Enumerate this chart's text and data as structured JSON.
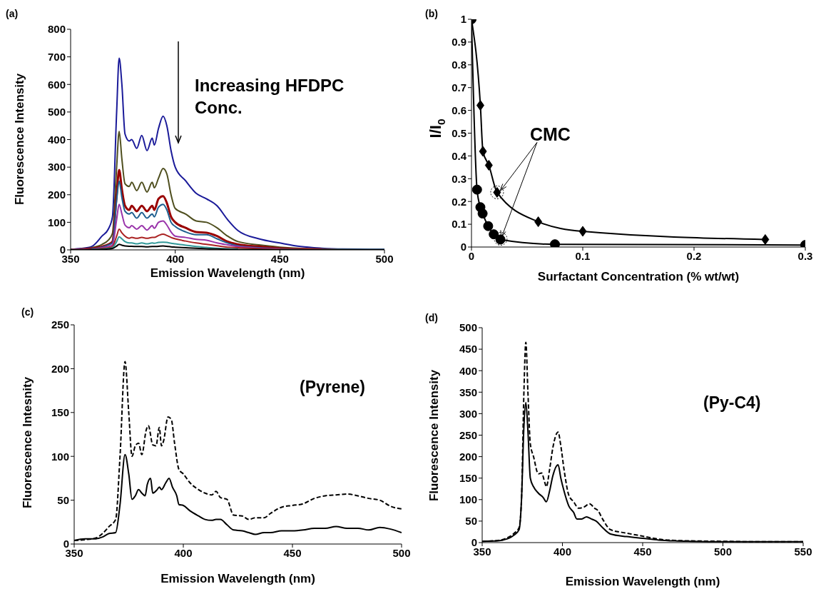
{
  "chart_data": [
    {
      "type": "line",
      "title": "(a)",
      "xlabel": "Emission Wavelength (nm)",
      "ylabel": "Fluorescence Intensity",
      "annotations": [
        "Increasing HFDPC Conc."
      ],
      "x": [
        350,
        355,
        360,
        365,
        368,
        370,
        372,
        373.2,
        374.5,
        376,
        378,
        379.2,
        381.6,
        384,
        386.5,
        389,
        390,
        392,
        394.2,
        396,
        398,
        400,
        405,
        410,
        415,
        420,
        425,
        430,
        440,
        450,
        460,
        470,
        480,
        500
      ],
      "series": [
        {
          "color": "#1a1a99",
          "values": [
            2,
            5,
            12,
            50,
            75,
            120,
            500,
            695,
            600,
            420,
            395,
            400,
            368,
            415,
            360,
            405,
            380,
            440,
            485,
            450,
            360,
            300,
            250,
            205,
            185,
            160,
            110,
            70,
            40,
            25,
            12,
            6,
            3,
            2
          ]
        },
        {
          "color": "#4f4f1f",
          "values": [
            1,
            3,
            8,
            20,
            35,
            60,
            300,
            430,
            330,
            240,
            230,
            245,
            215,
            245,
            210,
            245,
            225,
            260,
            295,
            275,
            200,
            150,
            130,
            105,
            100,
            80,
            50,
            30,
            18,
            10,
            5,
            3,
            2,
            1
          ]
        },
        {
          "color": "#990000",
          "values": [
            1,
            2,
            5,
            12,
            20,
            30,
            200,
            290,
            220,
            160,
            145,
            160,
            140,
            160,
            140,
            160,
            145,
            185,
            195,
            170,
            120,
            100,
            80,
            65,
            62,
            50,
            30,
            20,
            12,
            6,
            3,
            2,
            null,
            null
          ]
        },
        {
          "color": "#1f5f8f",
          "values": [
            1,
            2,
            4,
            10,
            18,
            25,
            180,
            250,
            190,
            140,
            130,
            135,
            115,
            135,
            115,
            130,
            120,
            155,
            165,
            145,
            100,
            85,
            65,
            55,
            55,
            40,
            25,
            15,
            8,
            4,
            2,
            1,
            1,
            1
          ]
        },
        {
          "color": "#9933aa",
          "values": [
            0,
            1,
            3,
            8,
            12,
            18,
            110,
            165,
            130,
            90,
            80,
            88,
            75,
            88,
            72,
            88,
            78,
            100,
            105,
            90,
            65,
            50,
            45,
            38,
            35,
            25,
            18,
            12,
            6,
            3,
            null,
            null,
            null,
            null
          ]
        },
        {
          "color": "#aa2222",
          "values": [
            0,
            1,
            2,
            5,
            8,
            12,
            50,
            75,
            62,
            50,
            42,
            45,
            42,
            45,
            42,
            45,
            45,
            52,
            57,
            52,
            45,
            40,
            32,
            25,
            20,
            15,
            10,
            8,
            4,
            2,
            1,
            1,
            0,
            0
          ]
        },
        {
          "color": "#339999",
          "values": [
            null,
            null,
            1,
            3,
            5,
            8,
            30,
            47,
            40,
            30,
            25,
            25,
            22,
            25,
            22,
            25,
            24,
            27,
            28,
            27,
            24,
            22,
            17,
            12,
            9,
            6,
            4,
            3,
            null,
            null,
            null,
            null,
            null,
            null
          ]
        },
        {
          "color": "#000000",
          "values": [
            0,
            0,
            1,
            2,
            3,
            5,
            14,
            20,
            17,
            14,
            13,
            13,
            12,
            12,
            11,
            12,
            12,
            13,
            14,
            13,
            11,
            10,
            8,
            6,
            4,
            3,
            2,
            1,
            1,
            0,
            0,
            0,
            0,
            0
          ]
        }
      ],
      "xlim": [
        350,
        500
      ],
      "xticks": [
        350,
        400,
        450,
        500
      ],
      "ylim": [
        0,
        800
      ],
      "yticks": [
        0,
        100,
        200,
        300,
        400,
        500,
        600,
        700,
        800
      ]
    },
    {
      "type": "line",
      "title": "(b)",
      "xlabel": "Surfactant Concentration (% wt/wt)",
      "ylabel": "I/I$_{0}$",
      "annotations": [
        {
          "text": "CMC",
          "x": 0.023,
          "y": 0.24
        }
      ],
      "series": [
        {
          "color": "#000000",
          "marker": "circle",
          "x": [
            0,
            0.005,
            0.008,
            0.01,
            0.015,
            0.02,
            0.026,
            0.075,
            0.3
          ],
          "values": [
            1,
            0.252,
            0.175,
            0.147,
            0.092,
            0.056,
            0.033,
            0.012,
            0.009
          ]
        },
        {
          "color": "#000000",
          "marker": "diamond",
          "x": [
            0,
            0.008,
            0.0103,
            0.0156,
            0.023,
            0.06,
            0.1,
            0.264
          ],
          "values": [
            1,
            0.622,
            0.42,
            0.359,
            0.24,
            0.111,
            0.069,
            0.033
          ]
        }
      ],
      "xlim": [
        0,
        0.3
      ],
      "xticks": [
        0,
        0.1,
        0.2,
        0.3
      ],
      "ylim": [
        0,
        1
      ],
      "yticks": [
        0,
        0.1,
        0.2,
        0.3,
        0.4,
        0.5,
        0.6,
        0.7,
        0.8,
        0.9,
        1
      ]
    },
    {
      "type": "line",
      "title": "(c)",
      "xlabel": "Emission Wavelength (nm)",
      "ylabel": "Fluorescence Intesnity",
      "annotations": [
        "(Pyrene)"
      ],
      "series": [
        {
          "color": "#000000",
          "line_style": "dashed",
          "x": [
            350,
            355,
            360,
            363,
            366,
            369,
            371,
            373.3,
            375,
            376.5,
            378,
            379.5,
            381,
            383,
            384,
            386,
            387.5,
            389,
            390,
            391,
            393,
            394.5,
            396,
            398,
            400,
            403,
            407,
            410,
            413,
            415,
            417,
            420,
            423,
            427,
            430,
            433,
            437,
            440,
            445,
            450,
            455,
            460,
            465,
            470,
            475,
            480,
            485,
            490,
            495,
            500
          ],
          "values": [
            4,
            5,
            7,
            12,
            20,
            28,
            100,
            208,
            150,
            100,
            112,
            115,
            102,
            130,
            135,
            113,
            112,
            133,
            112,
            118,
            145,
            142,
            115,
            85,
            80,
            70,
            62,
            58,
            56,
            60,
            53,
            51,
            33,
            32,
            28,
            30,
            30,
            35,
            42,
            44,
            46,
            52,
            55,
            56,
            57,
            55,
            52,
            50,
            43,
            40
          ]
        },
        {
          "color": "#000000",
          "line_style": "solid",
          "x": [
            350,
            355,
            360,
            363,
            366,
            369,
            371,
            373.3,
            375,
            376.5,
            378,
            379.5,
            381,
            382.5,
            383.5,
            385,
            386,
            388,
            389,
            390,
            392,
            393.5,
            395,
            397,
            398,
            400,
            403,
            407,
            410,
            413,
            415,
            417,
            420,
            423,
            427,
            430,
            433,
            437,
            440,
            445,
            450,
            455,
            460,
            465,
            470,
            475,
            480,
            485,
            490,
            495,
            500
          ],
          "values": [
            4,
            6,
            6,
            8,
            12,
            13,
            45,
            102,
            80,
            51,
            55,
            62,
            58,
            55,
            68,
            75,
            58,
            62,
            65,
            62,
            70,
            75,
            65,
            55,
            45,
            44,
            38,
            32,
            28,
            27,
            28,
            28,
            22,
            16,
            15,
            13,
            11,
            13,
            13,
            15,
            15,
            16,
            18,
            18,
            20,
            18,
            18,
            16,
            19,
            17,
            13
          ]
        }
      ],
      "xlim": [
        350,
        500
      ],
      "xticks": [
        350,
        400,
        450,
        500
      ],
      "ylim": [
        0,
        250
      ],
      "yticks": [
        0,
        50,
        100,
        150,
        200,
        250
      ]
    },
    {
      "type": "line",
      "title": "(d)",
      "xlabel": "Emission Wavelength (nm)",
      "ylabel": "Fluorescence Intensity",
      "annotations": [
        "(Py-C4)"
      ],
      "series": [
        {
          "color": "#000000",
          "line_style": "dashed",
          "x": [
            350,
            360,
            365,
            370,
            373,
            374.5,
            376,
            377.2,
            378.5,
            380,
            382,
            385,
            387,
            389,
            390,
            392,
            394,
            397.3,
            399,
            401,
            404,
            407,
            410,
            413,
            417,
            420,
            422,
            425,
            430,
            440,
            450,
            460,
            470,
            480,
            500,
            520,
            550
          ],
          "values": [
            3,
            5,
            10,
            22,
            35,
            100,
            350,
            466,
            350,
            230,
            200,
            160,
            162,
            140,
            130,
            170,
            220,
            257,
            225,
            170,
            110,
            95,
            80,
            82,
            90,
            80,
            75,
            55,
            30,
            22,
            15,
            8,
            5,
            4,
            3,
            2,
            2
          ]
        },
        {
          "color": "#000000",
          "line_style": "solid",
          "x": [
            350,
            360,
            365,
            370,
            373,
            374.5,
            376,
            377.2,
            378.5,
            380,
            382,
            385,
            388,
            390,
            392,
            394,
            397.3,
            399,
            401,
            404,
            407,
            409,
            412,
            415,
            418,
            421,
            425,
            430,
            440,
            450,
            460,
            470,
            480,
            500,
            520,
            550
          ],
          "values": [
            3,
            4,
            8,
            18,
            30,
            100,
            270,
            326,
            260,
            150,
            130,
            115,
            105,
            95,
            120,
            155,
            181,
            150,
            120,
            85,
            70,
            55,
            55,
            60,
            55,
            50,
            35,
            20,
            14,
            10,
            6,
            4,
            3,
            2,
            2,
            2
          ]
        }
      ],
      "xlim": [
        350,
        550
      ],
      "xticks": [
        350,
        400,
        450,
        500,
        550
      ],
      "ylim": [
        0,
        500
      ],
      "yticks": [
        0,
        50,
        100,
        150,
        200,
        250,
        300,
        350,
        400,
        450,
        500
      ]
    }
  ]
}
